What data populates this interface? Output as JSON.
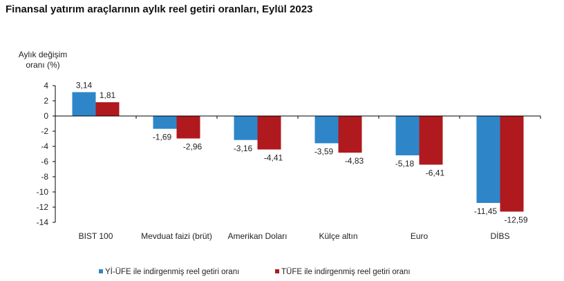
{
  "chart_data": {
    "type": "bar",
    "title": "Finansal yatırım araçlarının aylık reel getiri oranları, Eylül 2023",
    "ylabel_lines": [
      "Aylık değişim",
      "oranı (%)"
    ],
    "xlabel": "",
    "ylim": [
      -14,
      4
    ],
    "yticks": [
      4,
      2,
      0,
      -2,
      -4,
      -6,
      -8,
      -10,
      -12,
      -14
    ],
    "categories": [
      "BIST 100",
      "Mevduat faizi (brüt)",
      "Amerikan Doları",
      "Külçe altın",
      "Euro",
      "DİBS"
    ],
    "series": [
      {
        "name": "Yİ-ÜFE ile indirgenmiş reel getiri oranı",
        "color": "#2E86C9",
        "values": [
          3.14,
          -1.69,
          -3.16,
          -3.59,
          -5.18,
          -11.45
        ],
        "labels": [
          "3,14",
          "-1,69",
          "-3,16",
          "-3,59",
          "-5,18",
          "-11,45"
        ]
      },
      {
        "name": "TÜFE ile indirgenmiş reel getiri oranı",
        "color": "#B0191E",
        "values": [
          1.81,
          -2.96,
          -4.41,
          -4.83,
          -6.41,
          -12.59
        ],
        "labels": [
          "1,81",
          "-2,96",
          "-4,41",
          "-4,83",
          "-6,41",
          "-12,59"
        ]
      }
    ],
    "grid": false,
    "legend": "bottom"
  }
}
